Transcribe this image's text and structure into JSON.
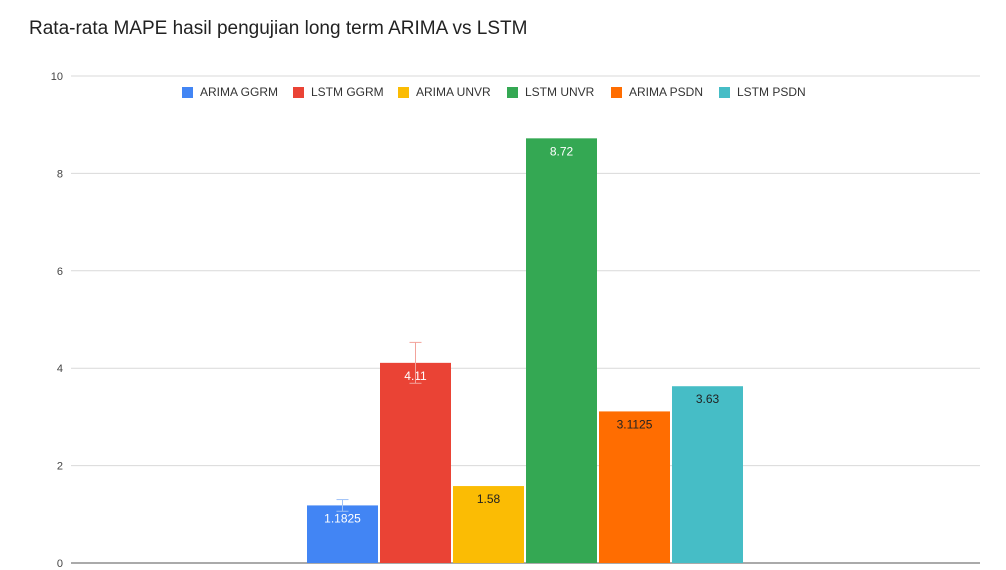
{
  "chart_data": {
    "type": "bar",
    "title": "Rata-rata MAPE hasil pengujian long term ARIMA vs LSTM",
    "xlabel": "",
    "ylabel": "",
    "ylim": [
      0,
      10
    ],
    "yticks": [
      "0",
      "2",
      "4",
      "6",
      "8",
      "10"
    ],
    "grid": true,
    "legend_position": "top",
    "series": [
      {
        "name": "ARIMA GGRM",
        "value": 1.1825,
        "label": "1.1825",
        "color": "#4285f4",
        "label_color": "#ffffff",
        "error": 0.12
      },
      {
        "name": "LSTM GGRM",
        "value": 4.11,
        "label": "4.11",
        "color": "#ea4335",
        "label_color": "#ffffff",
        "error": 0.42
      },
      {
        "name": "ARIMA UNVR",
        "value": 1.58,
        "label": "1.58",
        "color": "#fbbc04",
        "label_color": "#222222",
        "error": null
      },
      {
        "name": "LSTM UNVR",
        "value": 8.72,
        "label": "8.72",
        "color": "#34a853",
        "label_color": "#ffffff",
        "error": null
      },
      {
        "name": "ARIMA PSDN",
        "value": 3.1125,
        "label": "3.1125",
        "color": "#ff6d01",
        "label_color": "#222222",
        "error": null
      },
      {
        "name": "LSTM PSDN",
        "value": 3.63,
        "label": "3.63",
        "color": "#46bdc6",
        "label_color": "#222222",
        "error": null
      }
    ]
  }
}
